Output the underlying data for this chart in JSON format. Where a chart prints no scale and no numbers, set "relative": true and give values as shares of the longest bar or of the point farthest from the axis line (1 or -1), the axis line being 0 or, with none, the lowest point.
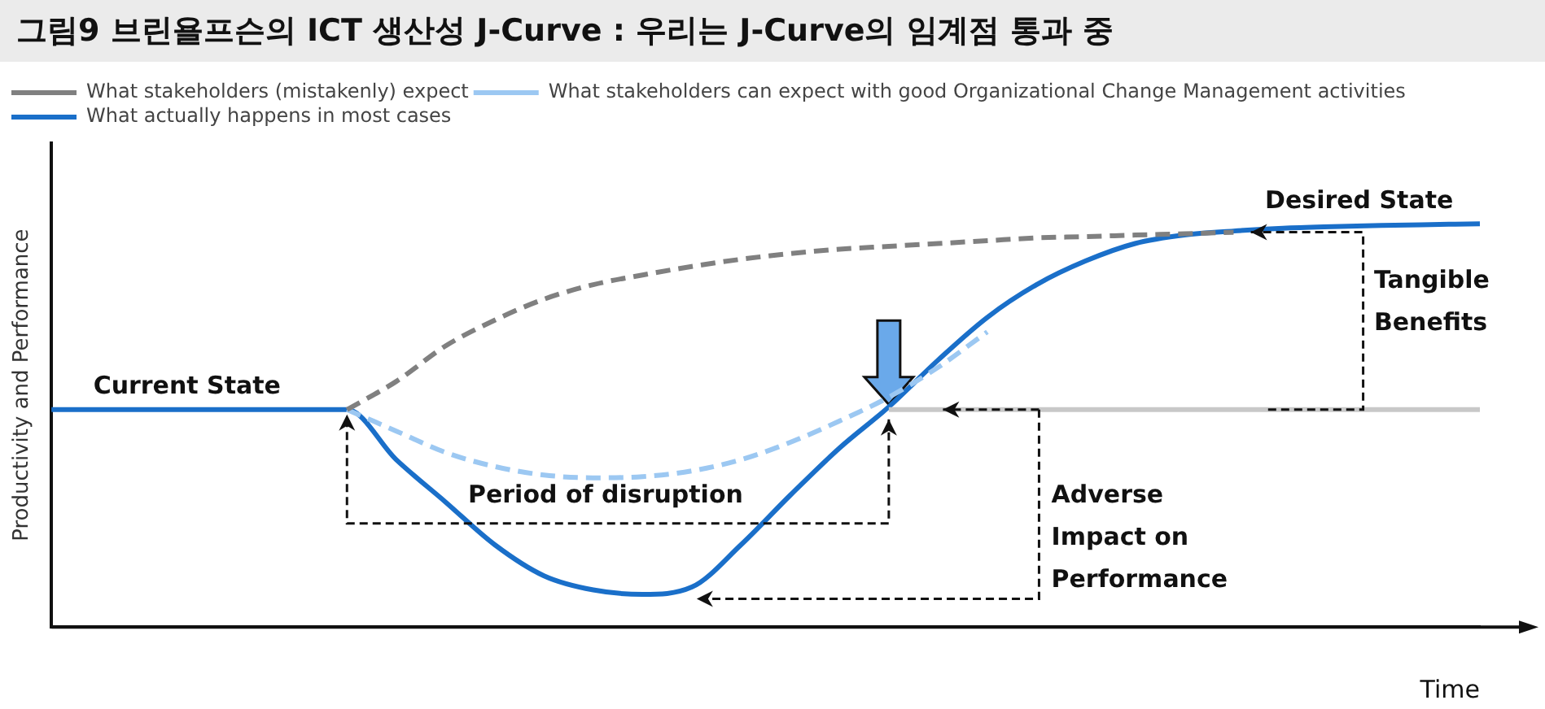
{
  "chart_data": {
    "type": "line",
    "title": "그림9 브린욜프슨의 ICT 생산성 J-Curve :  우리는 J-Curve의 임계점 통과 중",
    "xlabel": "Time",
    "ylabel": "Productivity and Performance",
    "relative": true,
    "legend": "top left",
    "marker": "none",
    "grid": false,
    "categories": [
      null,
      null,
      null,
      null,
      null,
      null,
      null,
      null,
      null,
      null,
      null,
      null,
      null,
      null,
      null,
      null,
      null,
      null,
      null,
      null,
      null,
      null,
      null,
      null,
      null,
      null,
      null,
      null,
      null,
      null
    ],
    "series": [
      {
        "name": "What stakeholders (mistakenly) expect",
        "color": "#808080",
        "line_style": "dashed",
        "values": [
          null,
          null,
          null,
          null,
          null,
          null,
          0.539,
          0.609,
          0.697,
          0.761,
          0.813,
          0.849,
          0.873,
          0.894,
          0.912,
          0.926,
          0.937,
          0.944,
          0.951,
          0.958,
          0.965,
          0.968,
          0.972,
          0.975,
          0.979,
          null,
          null,
          null,
          null,
          null
        ]
      },
      {
        "name": "What stakeholders can expect with good Organizational Change Management activities",
        "color": "#9cc8f2",
        "line_style": "dashed",
        "values": [
          null,
          null,
          null,
          null,
          null,
          null,
          0.539,
          0.486,
          0.433,
          0.398,
          0.377,
          0.37,
          0.373,
          0.387,
          0.415,
          0.458,
          0.511,
          0.57,
          0.644,
          0.732,
          null,
          null,
          null,
          null,
          null,
          null,
          null,
          null,
          null,
          null
        ]
      },
      {
        "color": "#c8c8c8",
        "line_style": "solid",
        "values": [
          null,
          null,
          null,
          null,
          null,
          null,
          null,
          null,
          null,
          null,
          null,
          null,
          null,
          null,
          null,
          null,
          null,
          0.539,
          0.539,
          0.539,
          0.539,
          0.539,
          0.539,
          0.539,
          0.539,
          0.539,
          0.539,
          0.539,
          0.539,
          0.539
        ]
      },
      {
        "name": "What actually happens in most cases",
        "color": "#1a6fc9",
        "line_style": "solid",
        "values": [
          0.539,
          0.539,
          0.539,
          0.539,
          0.539,
          0.539,
          0.539,
          0.415,
          0.31,
          0.204,
          0.127,
          0.092,
          0.081,
          0.099,
          0.204,
          0.327,
          0.444,
          0.546,
          0.662,
          0.768,
          0.849,
          0.908,
          0.951,
          0.972,
          0.982,
          0.989,
          0.993,
          0.996,
          0.998,
          1
        ]
      }
    ],
    "annotations": [
      "Current State",
      "Desired State",
      "Tangible Benefits",
      "Adverse Impact on Performance",
      "Period of disruption"
    ]
  }
}
